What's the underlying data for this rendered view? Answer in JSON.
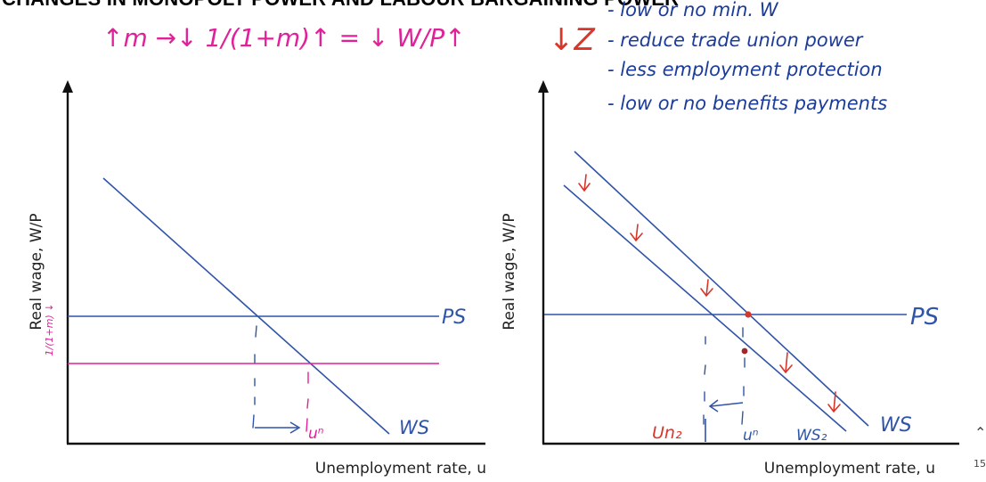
{
  "slide": {
    "title": "CHANGES IN MONOPOLY POWER AND LABOUR BARGAINING POWER",
    "page_number": "15"
  },
  "colors": {
    "axis": "#111111",
    "curve_blue": "#2f54a8",
    "ink_blue": "#1c3c9a",
    "ink_magenta": "#e0219a",
    "ink_red": "#d8362b"
  },
  "left_panel": {
    "ylabel": "Real wage, W/P",
    "xlabel": "Unemployment rate, u",
    "ps_label": "PS",
    "ws_label": "WS",
    "un_label": "uⁿ",
    "annotation_top": "↑m →↓ 1/(1+m)↑ = ↓ W/P↑",
    "annotation_axis": "1/(1+m) ↓"
  },
  "right_panel": {
    "ylabel": "Real wage, W/P",
    "xlabel": "Unemployment rate, u",
    "ps_label": "PS",
    "ws_label": "WS",
    "ws2_label": "WS₂",
    "un_label": "uⁿ",
    "un2_label": "Un₂",
    "z_label": "↓Z",
    "notes": [
      "- low or no min. W",
      "- reduce trade union power",
      "- less employment protection",
      "- low or no benefits payments"
    ]
  }
}
